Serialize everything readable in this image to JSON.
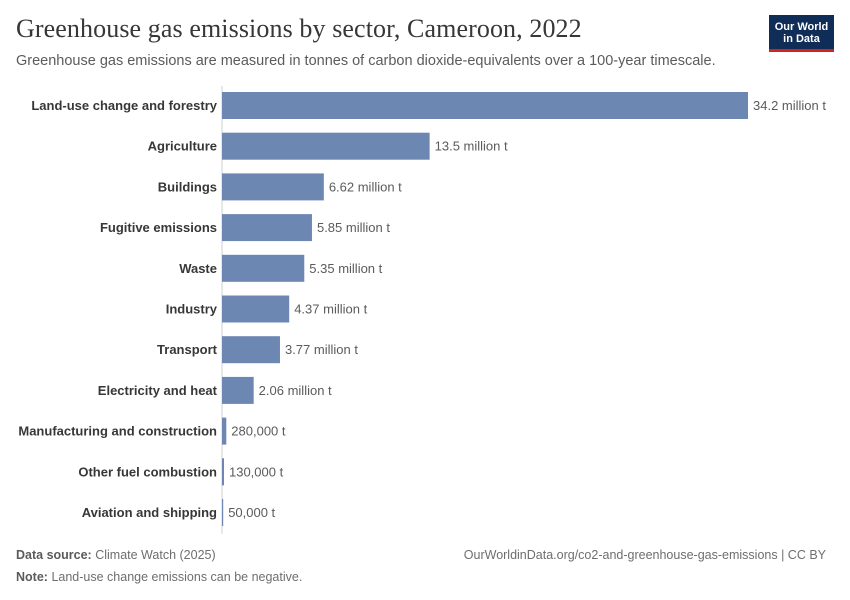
{
  "title": "Greenhouse gas emissions by sector, Cameroon, 2022",
  "subtitle": "Greenhouse gas emissions are measured in tonnes of carbon dioxide-equivalents over a 100-year timescale.",
  "logo": {
    "line1": "Our World",
    "line2": "in Data"
  },
  "colors": {
    "bar": "#6d87b3",
    "axis": "#cfcfcf",
    "logo_bg": "#0f2d56",
    "logo_accent": "#ce261e"
  },
  "footer": {
    "source_label": "Data source:",
    "source": "Climate Watch (2025)",
    "url": "OurWorldinData.org/co2-and-greenhouse-gas-emissions | CC BY",
    "note_label": "Note:",
    "note": "Land-use change emissions can be negative."
  },
  "chart_data": {
    "type": "bar",
    "orientation": "horizontal",
    "unit": "tonnes CO2-equivalents",
    "categories": [
      "Land-use change and forestry",
      "Agriculture",
      "Buildings",
      "Fugitive emissions",
      "Waste",
      "Industry",
      "Transport",
      "Electricity and heat",
      "Manufacturing and construction",
      "Other fuel combustion",
      "Aviation and shipping"
    ],
    "values": [
      34200000,
      13500000,
      6620000,
      5850000,
      5350000,
      4370000,
      3770000,
      2060000,
      280000,
      130000,
      50000
    ],
    "value_labels": [
      "34.2 million t",
      "13.5 million t",
      "6.62 million t",
      "5.85 million t",
      "5.35 million t",
      "4.37 million t",
      "3.77 million t",
      "2.06 million t",
      "280,000 t",
      "130,000 t",
      "50,000 t"
    ],
    "xlim": [
      0,
      34200000
    ]
  }
}
